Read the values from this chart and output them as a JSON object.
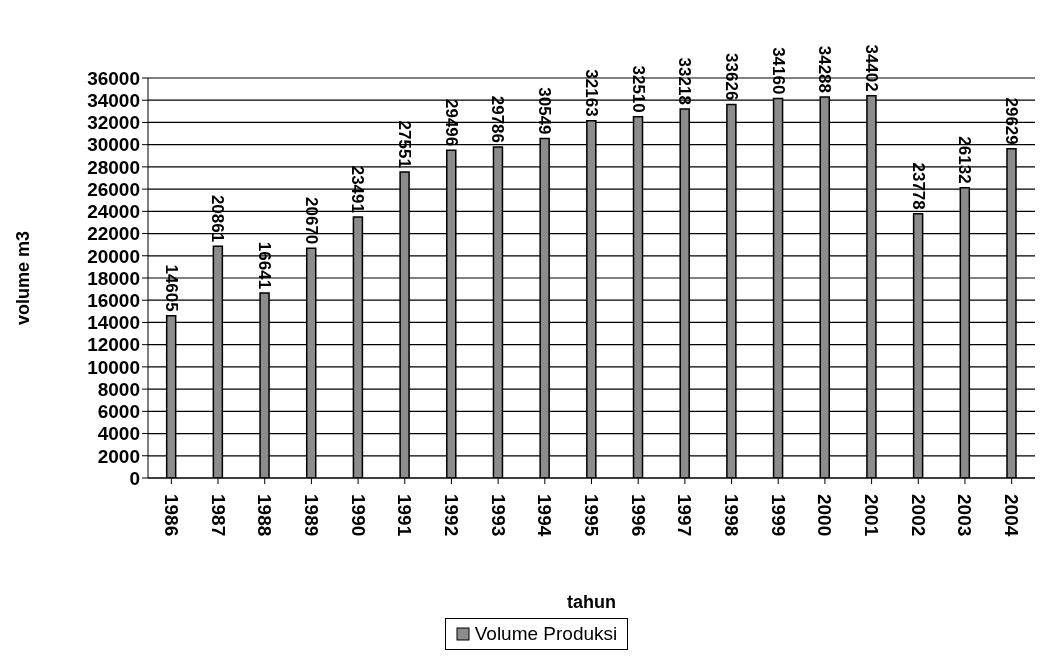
{
  "chart_data": {
    "type": "bar",
    "xlabel": "tahun",
    "ylabel": "volume m3",
    "categories": [
      "1986",
      "1987",
      "1988",
      "1989",
      "1990",
      "1991",
      "1992",
      "1993",
      "1994",
      "1995",
      "1996",
      "1997",
      "1998",
      "1999",
      "2000",
      "2001",
      "2002",
      "2003",
      "2004"
    ],
    "series": [
      {
        "name": "Volume Produksi",
        "color": "#8c8c8c",
        "values": [
          14605,
          20861,
          16641,
          20670,
          23491,
          27551,
          29496,
          29786,
          30549,
          32163,
          32510,
          33218,
          33626,
          34160,
          34288,
          34402,
          23778,
          26132,
          29629
        ]
      }
    ],
    "ylim": [
      0,
      36000
    ],
    "yticks": [
      0,
      2000,
      4000,
      6000,
      8000,
      10000,
      12000,
      14000,
      16000,
      18000,
      20000,
      22000,
      24000,
      26000,
      28000,
      30000,
      32000,
      34000,
      36000
    ],
    "grid": "y",
    "legend": "bottom",
    "data_labels": true
  }
}
